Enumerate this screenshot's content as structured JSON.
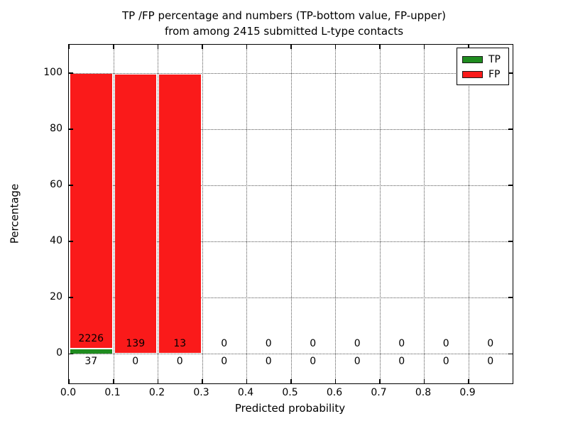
{
  "figure": {
    "title_line1": "TP /FP percentage and numbers (TP-bottom value, FP-upper)",
    "title_line2": "from among 2415 submitted L-type contacts"
  },
  "axes": {
    "xlabel": "Predicted probability",
    "ylabel": "Percentage",
    "xlim": [
      0.0,
      1.0
    ],
    "ylim": [
      -10.6,
      110.0
    ],
    "xticks": [
      {
        "value": 0.0,
        "label": "0.0"
      },
      {
        "value": 0.1,
        "label": "0.1"
      },
      {
        "value": 0.2,
        "label": "0.2"
      },
      {
        "value": 0.3,
        "label": "0.3"
      },
      {
        "value": 0.4,
        "label": "0.4"
      },
      {
        "value": 0.5,
        "label": "0.5"
      },
      {
        "value": 0.6,
        "label": "0.6"
      },
      {
        "value": 0.7,
        "label": "0.7"
      },
      {
        "value": 0.8,
        "label": "0.8"
      },
      {
        "value": 0.9,
        "label": "0.9"
      }
    ],
    "yticks": [
      {
        "value": 0,
        "label": "0"
      },
      {
        "value": 20,
        "label": "20"
      },
      {
        "value": 40,
        "label": "40"
      },
      {
        "value": 60,
        "label": "60"
      },
      {
        "value": 80,
        "label": "80"
      },
      {
        "value": 100,
        "label": "100"
      }
    ],
    "grid": true,
    "grid_style": "dotted"
  },
  "legend": {
    "position": "upper-right",
    "items": [
      {
        "label": "TP",
        "color": "#1f8c1f"
      },
      {
        "label": "FP",
        "color": "#fa1a1a"
      }
    ]
  },
  "chart_data": {
    "type": "bar",
    "stacked": true,
    "title": "TP /FP percentage and numbers (TP-bottom value, FP-upper) from among 2415 submitted L-type contacts",
    "total_contacts": 2415,
    "xlabel": "Predicted probability",
    "ylabel": "Percentage",
    "bin_width": 0.1,
    "series": [
      {
        "name": "TP",
        "color": "#1f8c1f",
        "position": "bottom"
      },
      {
        "name": "FP",
        "color": "#fa1a1a",
        "position": "upper"
      }
    ],
    "bins": [
      {
        "range": [
          0.0,
          0.1
        ],
        "tp_count": 37,
        "fp_count": 2226,
        "tp_pct": 1.6,
        "fp_pct": 98.0
      },
      {
        "range": [
          0.1,
          0.2
        ],
        "tp_count": 0,
        "fp_count": 139,
        "tp_pct": 0,
        "fp_pct": 99.5
      },
      {
        "range": [
          0.2,
          0.3
        ],
        "tp_count": 0,
        "fp_count": 13,
        "tp_pct": 0,
        "fp_pct": 99.5
      },
      {
        "range": [
          0.3,
          0.4
        ],
        "tp_count": 0,
        "fp_count": 0,
        "tp_pct": 0,
        "fp_pct": 0
      },
      {
        "range": [
          0.4,
          0.5
        ],
        "tp_count": 0,
        "fp_count": 0,
        "tp_pct": 0,
        "fp_pct": 0
      },
      {
        "range": [
          0.5,
          0.6
        ],
        "tp_count": 0,
        "fp_count": 0,
        "tp_pct": 0,
        "fp_pct": 0
      },
      {
        "range": [
          0.6,
          0.7
        ],
        "tp_count": 0,
        "fp_count": 0,
        "tp_pct": 0,
        "fp_pct": 0
      },
      {
        "range": [
          0.7,
          0.8
        ],
        "tp_count": 0,
        "fp_count": 0,
        "tp_pct": 0,
        "fp_pct": 0
      },
      {
        "range": [
          0.8,
          0.9
        ],
        "tp_count": 0,
        "fp_count": 0,
        "tp_pct": 0,
        "fp_pct": 0
      },
      {
        "range": [
          0.9,
          1.0
        ],
        "tp_count": 0,
        "fp_count": 0,
        "tp_pct": 0,
        "fp_pct": 0
      }
    ]
  }
}
